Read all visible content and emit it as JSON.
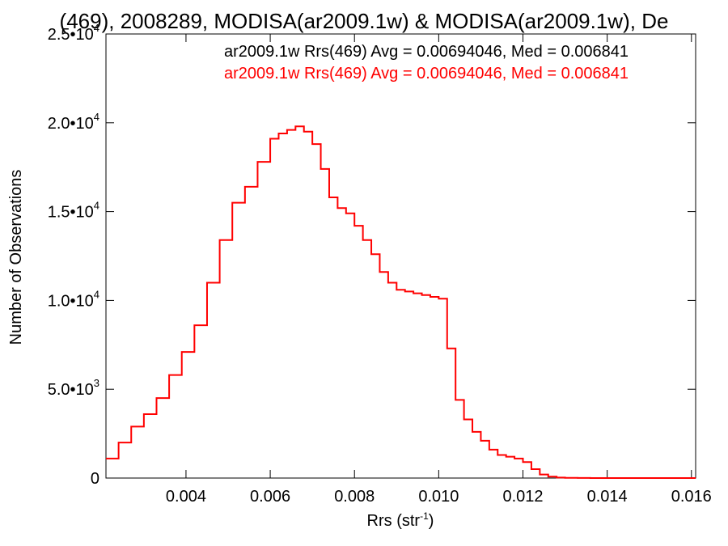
{
  "chart_data": {
    "type": "line",
    "step": true,
    "title": "(469), 2008289, MODISA(ar2009.1w) & MODISA(ar2009.1w), De",
    "xlabel": "Rrs (str",
    "xlabel_sup": "-1",
    "xlabel_end": ")",
    "ylabel": "Number of Observations",
    "xlim": [
      0.0021,
      0.0161
    ],
    "ylim": [
      0,
      25000
    ],
    "x_ticks": [
      {
        "value": 0.004,
        "label": "0.004"
      },
      {
        "value": 0.006,
        "label": "0.006"
      },
      {
        "value": 0.008,
        "label": "0.008"
      },
      {
        "value": 0.01,
        "label": "0.010"
      },
      {
        "value": 0.012,
        "label": "0.012"
      },
      {
        "value": 0.014,
        "label": "0.014"
      },
      {
        "value": 0.016,
        "label": "0.016"
      }
    ],
    "y_ticks": [
      {
        "value": 0,
        "mant": "0",
        "exp": ""
      },
      {
        "value": 5000,
        "mant": "5.0•10",
        "exp": "3"
      },
      {
        "value": 10000,
        "mant": "1.0•10",
        "exp": "4"
      },
      {
        "value": 15000,
        "mant": "1.5•10",
        "exp": "4"
      },
      {
        "value": 20000,
        "mant": "2.0•10",
        "exp": "4"
      },
      {
        "value": 25000,
        "mant": "2.5•10",
        "exp": "4"
      }
    ],
    "legend": {
      "position": "top-right",
      "entries": [
        {
          "text": "ar2009.1w Rrs(469) Avg = 0.00694046, Med = 0.006841",
          "color": "#000000"
        },
        {
          "text": "ar2009.1w Rrs(469) Avg = 0.00694046, Med = 0.006841",
          "color": "#ff0000"
        }
      ]
    },
    "series": [
      {
        "color": "#ff0000",
        "x": [
          0.0021,
          0.0024,
          0.0027,
          0.003,
          0.0033,
          0.0036,
          0.0039,
          0.0042,
          0.0045,
          0.0048,
          0.0051,
          0.0054,
          0.0057,
          0.006,
          0.0062,
          0.0064,
          0.0066,
          0.0068,
          0.007,
          0.0072,
          0.0074,
          0.0076,
          0.0078,
          0.008,
          0.0082,
          0.0084,
          0.0086,
          0.0088,
          0.009,
          0.0092,
          0.0094,
          0.0096,
          0.0098,
          0.01,
          0.0102,
          0.0104,
          0.0106,
          0.0108,
          0.011,
          0.0112,
          0.0114,
          0.0116,
          0.0118,
          0.012,
          0.0122,
          0.0124,
          0.0126,
          0.0128,
          0.013,
          0.0133,
          0.0136,
          0.014,
          0.0145,
          0.015,
          0.0155,
          0.0161
        ],
        "y": [
          1100,
          2000,
          2900,
          3600,
          4500,
          5800,
          7100,
          8600,
          11000,
          13400,
          15500,
          16400,
          17800,
          19100,
          19400,
          19600,
          19800,
          19500,
          18800,
          17400,
          15800,
          15200,
          14900,
          14200,
          13400,
          12600,
          11600,
          11000,
          10600,
          10500,
          10400,
          10300,
          10200,
          10100,
          7300,
          4400,
          3300,
          2600,
          2100,
          1600,
          1300,
          1200,
          1100,
          900,
          500,
          200,
          80,
          30,
          10,
          5,
          0,
          0,
          0,
          0,
          0,
          0
        ]
      }
    ]
  }
}
